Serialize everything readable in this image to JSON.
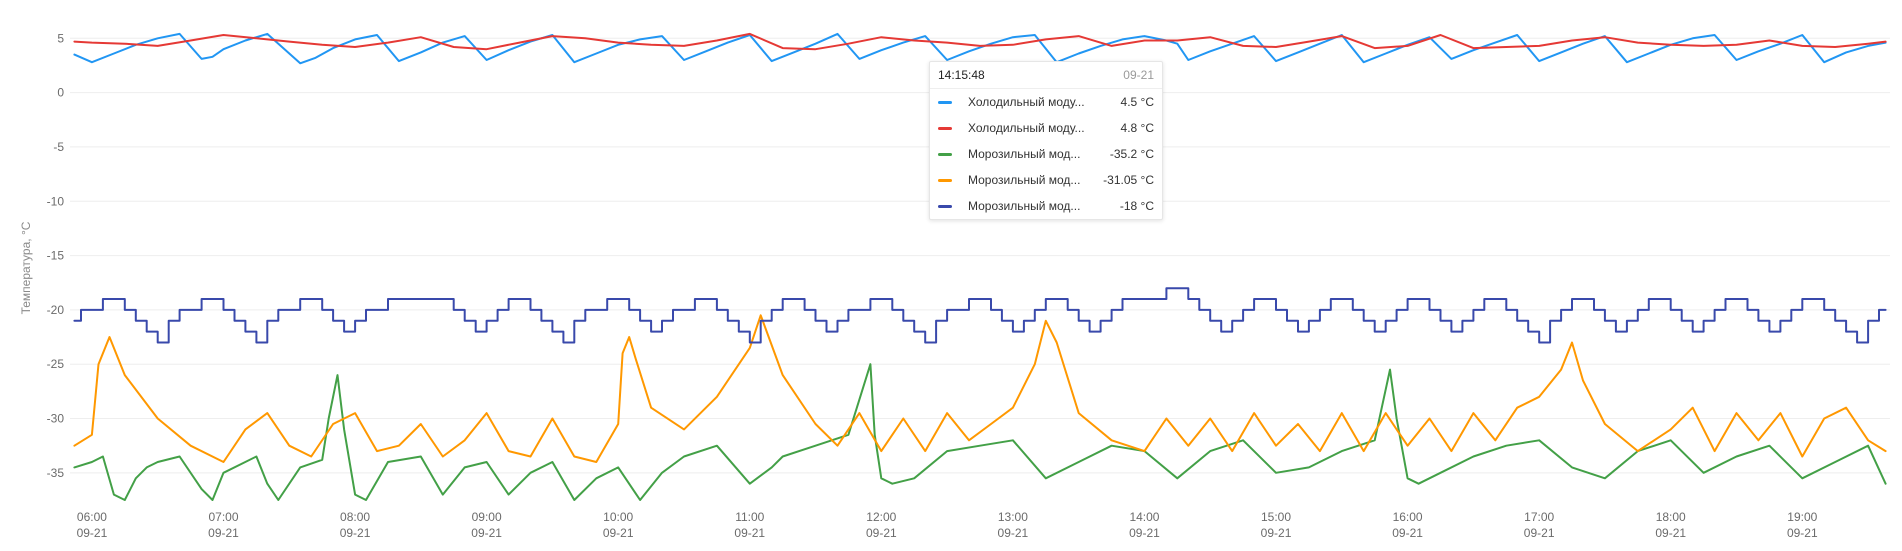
{
  "chart_data": {
    "type": "line",
    "title": "",
    "xlabel": "",
    "ylabel": "Температура, °C",
    "ylim": [
      -37.5,
      6.5
    ],
    "y_ticks": [
      5,
      0,
      -5,
      -10,
      -15,
      -20,
      -25,
      -30,
      -35
    ],
    "xlim": [
      "05:50",
      "19:40"
    ],
    "x_ticks": [
      {
        "time": "06:00",
        "date": "09-21"
      },
      {
        "time": "07:00",
        "date": "09-21"
      },
      {
        "time": "08:00",
        "date": "09-21"
      },
      {
        "time": "09:00",
        "date": "09-21"
      },
      {
        "time": "10:00",
        "date": "09-21"
      },
      {
        "time": "11:00",
        "date": "09-21"
      },
      {
        "time": "12:00",
        "date": "09-21"
      },
      {
        "time": "13:00",
        "date": "09-21"
      },
      {
        "time": "14:00",
        "date": "09-21"
      },
      {
        "time": "15:00",
        "date": "09-21"
      },
      {
        "time": "16:00",
        "date": "09-21"
      },
      {
        "time": "17:00",
        "date": "09-21"
      },
      {
        "time": "18:00",
        "date": "09-21"
      },
      {
        "time": "19:00",
        "date": "09-21"
      }
    ],
    "grid": true,
    "series": [
      {
        "name": "Холодильный моду...",
        "color": "#2196f3",
        "times": [
          "05:52",
          "06:00",
          "06:10",
          "06:20",
          "06:30",
          "06:40",
          "06:50",
          "06:55",
          "07:00",
          "07:10",
          "07:20",
          "07:35",
          "07:42",
          "07:50",
          "08:00",
          "08:10",
          "08:20",
          "08:30",
          "08:40",
          "08:50",
          "09:00",
          "09:10",
          "09:20",
          "09:30",
          "09:40",
          "09:50",
          "10:00",
          "10:10",
          "10:20",
          "10:30",
          "10:40",
          "10:50",
          "11:00",
          "11:10",
          "11:20",
          "11:30",
          "11:40",
          "11:50",
          "12:00",
          "12:10",
          "12:20",
          "12:30",
          "12:40",
          "12:50",
          "13:00",
          "13:10",
          "13:20",
          "13:30",
          "13:40",
          "13:50",
          "14:00",
          "14:10",
          "14:15",
          "14:20",
          "14:30",
          "14:40",
          "14:50",
          "15:00",
          "15:10",
          "15:20",
          "15:30",
          "15:40",
          "15:50",
          "16:00",
          "16:10",
          "16:20",
          "16:30",
          "16:40",
          "16:50",
          "17:00",
          "17:10",
          "17:20",
          "17:30",
          "17:40",
          "17:50",
          "18:00",
          "18:10",
          "18:20",
          "18:30",
          "18:40",
          "18:50",
          "19:00",
          "19:10",
          "19:20",
          "19:30",
          "19:38"
        ],
        "values": [
          3.5,
          2.8,
          3.6,
          4.4,
          5.0,
          5.4,
          3.1,
          3.3,
          4.0,
          4.8,
          5.4,
          2.7,
          3.2,
          4.1,
          4.9,
          5.3,
          2.9,
          3.7,
          4.6,
          5.2,
          3.0,
          3.9,
          4.7,
          5.3,
          2.8,
          3.6,
          4.4,
          4.9,
          5.2,
          3.0,
          3.8,
          4.6,
          5.3,
          2.9,
          3.7,
          4.5,
          5.4,
          3.1,
          3.9,
          4.6,
          5.2,
          3.0,
          3.8,
          4.5,
          5.1,
          5.3,
          2.8,
          3.6,
          4.3,
          4.9,
          5.2,
          4.8,
          4.5,
          3.0,
          3.8,
          4.5,
          5.2,
          2.9,
          3.7,
          4.5,
          5.3,
          2.8,
          3.6,
          4.4,
          5.1,
          3.1,
          3.9,
          4.6,
          5.3,
          2.9,
          3.7,
          4.5,
          5.2,
          2.8,
          3.6,
          4.4,
          5.0,
          5.3,
          3.0,
          3.8,
          4.5,
          5.3,
          2.8,
          3.7,
          4.3,
          4.6
        ]
      },
      {
        "name": "Холодильный моду...",
        "color": "#e53935",
        "times": [
          "05:52",
          "06:00",
          "06:15",
          "06:30",
          "06:45",
          "07:00",
          "07:15",
          "07:30",
          "07:45",
          "08:00",
          "08:15",
          "08:30",
          "08:45",
          "09:00",
          "09:15",
          "09:30",
          "09:45",
          "10:00",
          "10:15",
          "10:30",
          "10:45",
          "11:00",
          "11:15",
          "11:30",
          "11:45",
          "12:00",
          "12:15",
          "12:30",
          "12:45",
          "13:00",
          "13:15",
          "13:30",
          "13:45",
          "14:00",
          "14:15",
          "14:30",
          "14:45",
          "15:00",
          "15:15",
          "15:30",
          "15:45",
          "16:00",
          "16:15",
          "16:30",
          "16:45",
          "17:00",
          "17:15",
          "17:30",
          "17:45",
          "18:00",
          "18:15",
          "18:30",
          "18:45",
          "19:00",
          "19:15",
          "19:30",
          "19:38"
        ],
        "values": [
          4.7,
          4.6,
          4.5,
          4.3,
          4.8,
          5.3,
          5.0,
          4.7,
          4.4,
          4.2,
          4.6,
          5.1,
          4.2,
          4.0,
          4.6,
          5.2,
          5.0,
          4.6,
          4.4,
          4.3,
          4.8,
          5.4,
          4.1,
          4.0,
          4.5,
          5.1,
          4.8,
          4.6,
          4.3,
          4.4,
          4.9,
          5.2,
          4.3,
          4.8,
          4.8,
          5.1,
          4.3,
          4.2,
          4.7,
          5.2,
          4.1,
          4.3,
          5.3,
          4.1,
          4.2,
          4.3,
          4.8,
          5.1,
          4.6,
          4.4,
          4.3,
          4.4,
          4.8,
          4.3,
          4.2,
          4.5,
          4.7
        ]
      },
      {
        "name": "Морозильный мод...",
        "color": "#43a047",
        "times": [
          "05:52",
          "06:00",
          "06:05",
          "06:10",
          "06:15",
          "06:20",
          "06:25",
          "06:30",
          "06:40",
          "06:50",
          "06:55",
          "07:00",
          "07:15",
          "07:20",
          "07:25",
          "07:35",
          "07:45",
          "07:48",
          "07:52",
          "07:55",
          "08:00",
          "08:05",
          "08:15",
          "08:30",
          "08:40",
          "08:50",
          "09:00",
          "09:10",
          "09:20",
          "09:30",
          "09:40",
          "09:50",
          "10:00",
          "10:10",
          "10:20",
          "10:30",
          "10:45",
          "11:00",
          "11:10",
          "11:15",
          "11:30",
          "11:45",
          "11:55",
          "11:57",
          "12:00",
          "12:05",
          "12:15",
          "12:30",
          "12:45",
          "13:00",
          "13:15",
          "13:30",
          "13:45",
          "14:00",
          "14:15",
          "14:30",
          "14:45",
          "15:00",
          "15:15",
          "15:30",
          "15:45",
          "15:52",
          "15:55",
          "16:00",
          "16:05",
          "16:15",
          "16:30",
          "16:45",
          "17:00",
          "17:15",
          "17:30",
          "17:45",
          "18:00",
          "18:15",
          "18:30",
          "18:45",
          "19:00",
          "19:15",
          "19:30",
          "19:38"
        ],
        "values": [
          -34.5,
          -34.0,
          -33.5,
          -37.0,
          -37.5,
          -35.5,
          -34.5,
          -34.0,
          -33.5,
          -36.5,
          -37.5,
          -35.0,
          -33.5,
          -36.0,
          -37.5,
          -34.5,
          -33.8,
          -30.0,
          -26.0,
          -31.0,
          -37.0,
          -37.5,
          -34.0,
          -33.5,
          -37.0,
          -34.5,
          -34.0,
          -37.0,
          -35.0,
          -34.0,
          -37.5,
          -35.5,
          -34.5,
          -37.5,
          -35.0,
          -33.5,
          -32.5,
          -36.0,
          -34.5,
          -33.5,
          -32.5,
          -31.5,
          -25.0,
          -31.5,
          -35.5,
          -36.0,
          -35.5,
          -33.0,
          -32.5,
          -32.0,
          -35.5,
          -34.0,
          -32.5,
          -33.0,
          -35.5,
          -33.0,
          -32.0,
          -35.0,
          -34.5,
          -33.0,
          -32.0,
          -25.5,
          -30.0,
          -35.5,
          -36.0,
          -35.0,
          -33.5,
          -32.5,
          -32.0,
          -34.5,
          -35.5,
          -33.0,
          -32.0,
          -35.0,
          -33.5,
          -32.5,
          -35.5,
          -34.0,
          -32.5,
          -36.0
        ]
      },
      {
        "name": "Морозильный мод...",
        "color": "#ff9800",
        "times": [
          "05:52",
          "06:00",
          "06:03",
          "06:08",
          "06:15",
          "06:30",
          "06:45",
          "07:00",
          "07:10",
          "07:20",
          "07:30",
          "07:40",
          "07:50",
          "08:00",
          "08:10",
          "08:20",
          "08:30",
          "08:40",
          "08:50",
          "09:00",
          "09:10",
          "09:20",
          "09:30",
          "09:40",
          "09:50",
          "10:00",
          "10:02",
          "10:05",
          "10:08",
          "10:15",
          "10:30",
          "10:45",
          "11:00",
          "11:05",
          "11:15",
          "11:30",
          "11:40",
          "11:50",
          "12:00",
          "12:10",
          "12:20",
          "12:30",
          "12:40",
          "12:50",
          "13:00",
          "13:10",
          "13:15",
          "13:20",
          "13:30",
          "13:45",
          "14:00",
          "14:10",
          "14:20",
          "14:30",
          "14:40",
          "14:50",
          "15:00",
          "15:10",
          "15:20",
          "15:30",
          "15:40",
          "15:50",
          "16:00",
          "16:10",
          "16:20",
          "16:30",
          "16:40",
          "16:50",
          "17:00",
          "17:10",
          "17:15",
          "17:20",
          "17:30",
          "17:45",
          "18:00",
          "18:10",
          "18:20",
          "18:30",
          "18:40",
          "18:50",
          "19:00",
          "19:10",
          "19:20",
          "19:30",
          "19:38"
        ],
        "values": [
          -32.5,
          -31.5,
          -25.0,
          -22.5,
          -26.0,
          -30.0,
          -32.5,
          -34.0,
          -31.0,
          -29.5,
          -32.5,
          -33.5,
          -30.5,
          -29.5,
          -33.0,
          -32.5,
          -30.5,
          -33.5,
          -32.0,
          -29.5,
          -33.0,
          -33.5,
          -30.0,
          -33.5,
          -34.0,
          -30.5,
          -24.0,
          -22.5,
          -24.5,
          -29.0,
          -31.0,
          -28.0,
          -23.5,
          -20.5,
          -26.0,
          -30.5,
          -32.5,
          -29.5,
          -33.0,
          -30.0,
          -33.0,
          -29.5,
          -32.0,
          -30.5,
          -29.0,
          -25.0,
          -21.0,
          -23.0,
          -29.5,
          -32.0,
          -33.0,
          -30.0,
          -32.5,
          -30.0,
          -33.0,
          -29.5,
          -32.5,
          -30.5,
          -33.0,
          -29.5,
          -33.0,
          -29.5,
          -32.5,
          -30.0,
          -33.0,
          -29.5,
          -32.0,
          -29.0,
          -28.0,
          -25.5,
          -23.0,
          -26.5,
          -30.5,
          -33.0,
          -31.0,
          -29.0,
          -33.0,
          -29.5,
          -32.0,
          -29.5,
          -33.5,
          -30.0,
          -29.0,
          -32.0,
          -33.0
        ]
      },
      {
        "name": "Морозильный мод...",
        "color": "#3949ab",
        "step": true,
        "times": [
          "05:52",
          "05:55",
          "06:00",
          "06:05",
          "06:10",
          "06:15",
          "06:20",
          "06:25",
          "06:30",
          "06:35",
          "06:40",
          "06:45",
          "06:50",
          "06:55",
          "07:00",
          "07:05",
          "07:10",
          "07:15",
          "07:20",
          "07:25",
          "07:30",
          "07:35",
          "07:40",
          "07:45",
          "07:50",
          "07:55",
          "08:00",
          "08:05",
          "08:10",
          "08:15",
          "08:40",
          "08:45",
          "08:50",
          "08:55",
          "09:00",
          "09:05",
          "09:10",
          "09:15",
          "09:20",
          "09:25",
          "09:30",
          "09:35",
          "09:40",
          "09:45",
          "09:50",
          "09:55",
          "10:00",
          "10:05",
          "10:10",
          "10:15",
          "10:20",
          "10:25",
          "10:30",
          "10:35",
          "10:40",
          "10:45",
          "10:50",
          "10:55",
          "11:00",
          "11:05",
          "11:10",
          "11:15",
          "11:20",
          "11:25",
          "11:30",
          "11:35",
          "11:40",
          "11:45",
          "11:50",
          "11:55",
          "12:00",
          "12:05",
          "12:10",
          "12:15",
          "12:20",
          "12:25",
          "12:30",
          "12:35",
          "12:40",
          "12:45",
          "12:50",
          "12:55",
          "13:00",
          "13:05",
          "13:10",
          "13:15",
          "13:20",
          "13:25",
          "13:30",
          "13:35",
          "13:40",
          "13:45",
          "13:50",
          "13:55",
          "14:00",
          "14:05",
          "14:10",
          "14:15",
          "14:20",
          "14:25",
          "14:30",
          "14:35",
          "14:40",
          "14:45",
          "14:50",
          "14:55",
          "15:00",
          "15:05",
          "15:10",
          "15:15",
          "15:20",
          "15:25",
          "15:30",
          "15:35",
          "15:40",
          "15:45",
          "15:50",
          "15:55",
          "16:00",
          "16:05",
          "16:10",
          "16:15",
          "16:20",
          "16:25",
          "16:30",
          "16:35",
          "16:40",
          "16:45",
          "16:50",
          "16:55",
          "17:00",
          "17:05",
          "17:10",
          "17:15",
          "17:20",
          "17:25",
          "17:30",
          "17:35",
          "17:40",
          "17:45",
          "17:50",
          "17:55",
          "18:00",
          "18:05",
          "18:10",
          "18:15",
          "18:20",
          "18:25",
          "18:30",
          "18:35",
          "18:40",
          "18:45",
          "18:50",
          "18:55",
          "19:00",
          "19:05",
          "19:10",
          "19:15",
          "19:20",
          "19:25",
          "19:30",
          "19:35",
          "19:38"
        ],
        "values": [
          -21,
          -20,
          -20,
          -19,
          -19,
          -20,
          -21,
          -22,
          -23,
          -21,
          -20,
          -20,
          -19,
          -19,
          -20,
          -21,
          -22,
          -23,
          -21,
          -20,
          -20,
          -19,
          -19,
          -20,
          -21,
          -22,
          -21,
          -20,
          -20,
          -19,
          -19,
          -20,
          -21,
          -22,
          -21,
          -20,
          -19,
          -19,
          -20,
          -21,
          -22,
          -23,
          -21,
          -20,
          -20,
          -19,
          -19,
          -20,
          -21,
          -22,
          -21,
          -20,
          -20,
          -19,
          -19,
          -20,
          -21,
          -22,
          -23,
          -21,
          -20,
          -19,
          -19,
          -20,
          -21,
          -22,
          -21,
          -20,
          -20,
          -19,
          -19,
          -20,
          -21,
          -22,
          -23,
          -21,
          -20,
          -20,
          -19,
          -19,
          -20,
          -21,
          -22,
          -21,
          -20,
          -19,
          -19,
          -20,
          -21,
          -22,
          -21,
          -20,
          -19,
          -19,
          -19,
          -19,
          -18,
          -18,
          -19,
          -20,
          -21,
          -22,
          -21,
          -20,
          -19,
          -19,
          -20,
          -21,
          -22,
          -21,
          -20,
          -19,
          -19,
          -20,
          -21,
          -22,
          -21,
          -20,
          -19,
          -19,
          -20,
          -21,
          -22,
          -21,
          -20,
          -19,
          -19,
          -20,
          -21,
          -22,
          -23,
          -21,
          -20,
          -19,
          -19,
          -20,
          -21,
          -22,
          -21,
          -20,
          -19,
          -19,
          -20,
          -21,
          -22,
          -21,
          -20,
          -19,
          -19,
          -20,
          -21,
          -22,
          -21,
          -20,
          -19,
          -19,
          -20,
          -21,
          -22,
          -23,
          -21,
          -20,
          -20
        ]
      }
    ]
  },
  "tooltip": {
    "time": "14:15:48",
    "date": "09-21",
    "rows": [
      {
        "name": "Холодильный моду...",
        "value": "4.5 °C",
        "color": "#2196f3"
      },
      {
        "name": "Холодильный моду...",
        "value": "4.8 °C",
        "color": "#e53935"
      },
      {
        "name": "Морозильный мод...",
        "value": "-35.2 °C",
        "color": "#43a047"
      },
      {
        "name": "Морозильный мод...",
        "value": "-31.05 °C",
        "color": "#ff9800"
      },
      {
        "name": "Морозильный мод...",
        "value": "-18 °C",
        "color": "#3949ab"
      }
    ]
  }
}
